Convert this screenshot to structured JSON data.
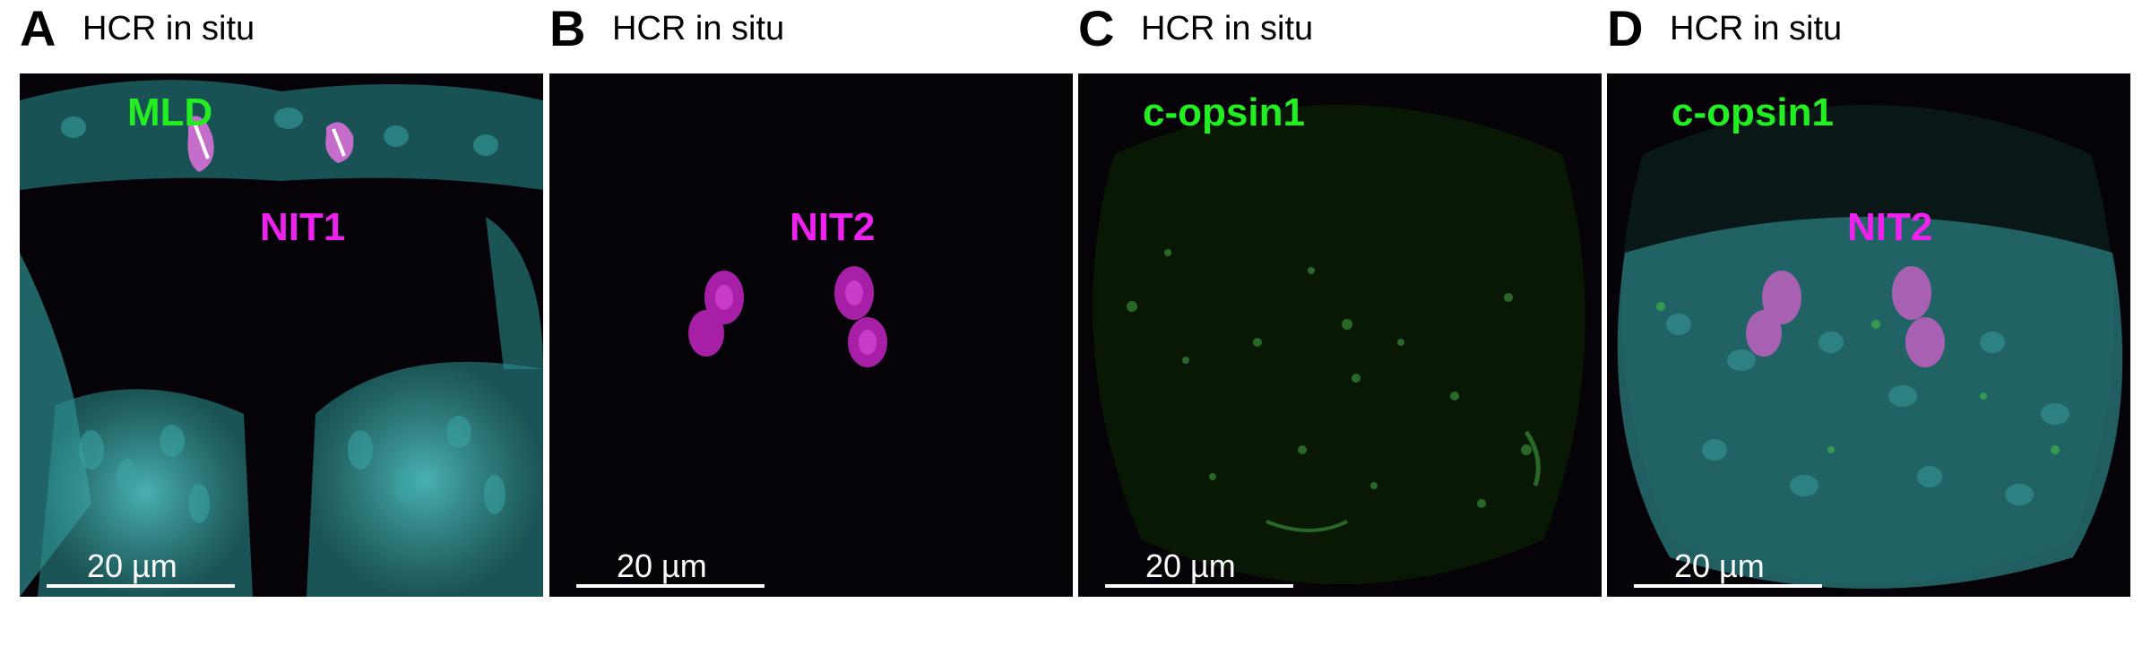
{
  "panels": [
    {
      "letter": "A",
      "title": "HCR in situ",
      "labels": [
        {
          "text": "MLD",
          "color": "green"
        },
        {
          "text": "NIT1",
          "color": "magenta"
        }
      ],
      "scale": "20 µm"
    },
    {
      "letter": "B",
      "title": "HCR in situ",
      "labels": [
        {
          "text": "NIT2",
          "color": "magenta"
        }
      ],
      "scale": "20 µm"
    },
    {
      "letter": "C",
      "title": "HCR in situ",
      "labels": [
        {
          "text": "c-opsin1",
          "color": "green"
        }
      ],
      "scale": "20 µm"
    },
    {
      "letter": "D",
      "title": "HCR in situ",
      "labels": [
        {
          "text": "c-opsin1",
          "color": "green"
        },
        {
          "text": "NIT2",
          "color": "magenta"
        }
      ],
      "scale": "20 µm"
    }
  ],
  "colors": {
    "green": "#22ee22",
    "magenta": "#ee22ee",
    "cyan": "#40b8b8",
    "background": "#050307"
  }
}
